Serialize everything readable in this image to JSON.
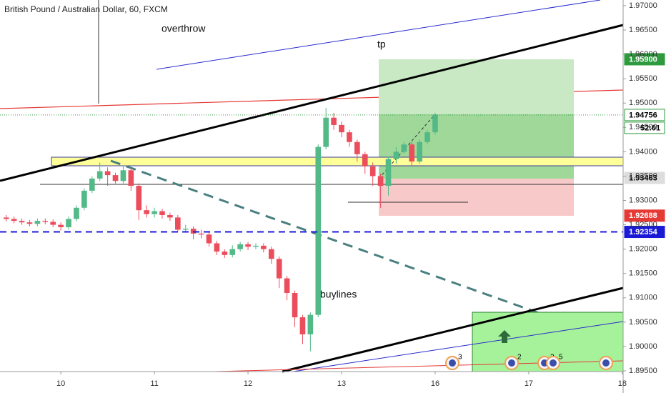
{
  "chart_data": {
    "type": "candlestick",
    "title": "British Pound / Australian Dollar, 60, FXCM",
    "annotations": {
      "overthrow": "overthrow",
      "tp": "tp",
      "buylines": "buylines"
    },
    "countdown": "52:01",
    "event_counts": [
      3,
      2,
      2,
      5
    ],
    "up_color": "#53b987",
    "down_color": "#eb4d5c",
    "xlim": [
      -15.6,
      144.2
    ],
    "xticks": [
      {
        "value": 0,
        "label": "10"
      },
      {
        "value": 24,
        "label": "11"
      },
      {
        "value": 48,
        "label": "12"
      },
      {
        "value": 72,
        "label": "13"
      },
      {
        "value": 96,
        "label": "16"
      },
      {
        "value": 120,
        "label": "17"
      },
      {
        "value": 144,
        "label": "18"
      }
    ],
    "ylim": [
      1.895,
      1.97
    ],
    "yticks": [
      {
        "value": 1.97,
        "label": "1.97000"
      },
      {
        "value": 1.965,
        "label": "1.96500"
      },
      {
        "value": 1.96,
        "label": "1.96000"
      },
      {
        "value": 1.955,
        "label": "1.95500"
      },
      {
        "value": 1.95,
        "label": "1.95000"
      },
      {
        "value": 1.945,
        "label": "1.94500"
      },
      {
        "value": 1.94,
        "label": "1.94000"
      },
      {
        "value": 1.935,
        "label": "1.93500"
      },
      {
        "value": 1.93,
        "label": "1.93000"
      },
      {
        "value": 1.925,
        "label": "1.92500"
      },
      {
        "value": 1.92,
        "label": "1.92000"
      },
      {
        "value": 1.915,
        "label": "1.91500"
      },
      {
        "value": 1.91,
        "label": "1.91000"
      },
      {
        "value": 1.905,
        "label": "1.90500"
      },
      {
        "value": 1.9,
        "label": "1.90000"
      },
      {
        "value": 1.895,
        "label": "1.89500"
      }
    ],
    "levels": [
      {
        "value": 1.959,
        "label": "1.95900",
        "color": "#2e9a3e",
        "text_color": "#ffffff"
      },
      {
        "value": 1.94756,
        "label": "1.94756",
        "color": "#ffffff",
        "text_color": "#000000"
      },
      {
        "value": 1.93463,
        "label": "1.93463",
        "color": "#dddddd",
        "text_color": "#000000"
      },
      {
        "value": 1.92688,
        "label": "1.92688",
        "color": "#e53935",
        "text_color": "#ffffff"
      },
      {
        "value": 1.92354,
        "label": "1.92354",
        "color": "#1a1ad6",
        "text_color": "#ffffff"
      }
    ],
    "candles": {
      "x": [
        -14,
        -12,
        -10,
        -8,
        -6,
        -4,
        -2,
        0,
        2,
        4,
        6,
        8,
        10,
        12,
        14,
        16,
        18,
        20,
        22,
        24,
        26,
        28,
        30,
        32,
        34,
        36,
        38,
        40,
        42,
        44,
        46,
        48,
        50,
        52,
        54,
        56,
        58,
        60,
        62,
        64,
        66,
        68,
        70,
        72,
        74,
        76,
        78,
        80,
        82,
        84,
        86,
        88,
        90,
        92,
        94,
        96
      ],
      "open": [
        1.9265,
        1.9262,
        1.9258,
        1.9255,
        1.9252,
        1.9258,
        1.9256,
        1.925,
        1.9245,
        1.9262,
        1.9285,
        1.932,
        1.9345,
        1.936,
        1.9352,
        1.934,
        1.9362,
        1.933,
        1.928,
        1.9272,
        1.9278,
        1.927,
        1.9265,
        1.924,
        1.9242,
        1.9232,
        1.923,
        1.9212,
        1.9195,
        1.9188,
        1.92,
        1.921,
        1.9205,
        1.9207,
        1.92,
        1.918,
        1.914,
        1.911,
        1.906,
        1.9025,
        1.9065,
        1.941,
        1.947,
        1.9455,
        1.944,
        1.942,
        1.9395,
        1.937,
        1.935,
        1.933,
        1.9385,
        1.94,
        1.9415,
        1.938,
        1.942,
        1.944
      ],
      "high": [
        1.927,
        1.9267,
        1.9263,
        1.926,
        1.9263,
        1.9263,
        1.9261,
        1.9255,
        1.9267,
        1.929,
        1.9325,
        1.935,
        1.9378,
        1.9368,
        1.9357,
        1.9372,
        1.9367,
        1.9335,
        1.929,
        1.9285,
        1.9283,
        1.9275,
        1.927,
        1.925,
        1.9247,
        1.924,
        1.9235,
        1.9217,
        1.92,
        1.9208,
        1.9215,
        1.9215,
        1.9212,
        1.9212,
        1.9205,
        1.9185,
        1.9145,
        1.9115,
        1.9065,
        1.907,
        1.9415,
        1.949,
        1.948,
        1.9462,
        1.9445,
        1.9425,
        1.94,
        1.9378,
        1.9355,
        1.939,
        1.941,
        1.942,
        1.942,
        1.9425,
        1.9445,
        1.948
      ],
      "low": [
        1.9257,
        1.9253,
        1.925,
        1.9247,
        1.9247,
        1.9251,
        1.9245,
        1.9238,
        1.924,
        1.9257,
        1.928,
        1.9315,
        1.934,
        1.933,
        1.9335,
        1.9335,
        1.932,
        1.926,
        1.9265,
        1.9265,
        1.9263,
        1.9258,
        1.9235,
        1.9235,
        1.922,
        1.9222,
        1.9205,
        1.9188,
        1.9182,
        1.9183,
        1.9195,
        1.9198,
        1.92,
        1.9193,
        1.917,
        1.912,
        1.9095,
        1.904,
        1.9005,
        1.899,
        1.906,
        1.9405,
        1.9445,
        1.943,
        1.941,
        1.938,
        1.9355,
        1.933,
        1.9285,
        1.931,
        1.9375,
        1.9395,
        1.937,
        1.9375,
        1.9415,
        1.9435
      ],
      "close": [
        1.9262,
        1.9258,
        1.9255,
        1.9252,
        1.9258,
        1.9256,
        1.925,
        1.9245,
        1.9262,
        1.9285,
        1.932,
        1.9345,
        1.936,
        1.9352,
        1.934,
        1.9362,
        1.933,
        1.928,
        1.9272,
        1.9278,
        1.927,
        1.9265,
        1.924,
        1.9242,
        1.9232,
        1.923,
        1.9212,
        1.9195,
        1.9188,
        1.92,
        1.921,
        1.9205,
        1.9207,
        1.92,
        1.918,
        1.914,
        1.911,
        1.906,
        1.9025,
        1.9065,
        1.941,
        1.947,
        1.9455,
        1.944,
        1.942,
        1.9395,
        1.937,
        1.935,
        1.933,
        1.9385,
        1.94,
        1.9415,
        1.938,
        1.942,
        1.944,
        1.9476
      ]
    }
  }
}
